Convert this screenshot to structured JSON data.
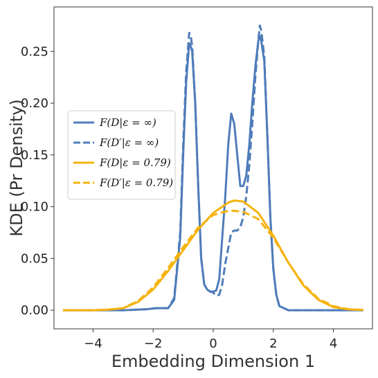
{
  "chart_data": {
    "type": "line",
    "title": "",
    "xlabel": "Embedding Dimension 1",
    "ylabel": "KDE (Pr Density)",
    "xlim": [
      -5.3,
      5.3
    ],
    "ylim": [
      -0.018,
      0.293
    ],
    "xticks": [
      -4,
      -2,
      0,
      2,
      4
    ],
    "xtick_labels": [
      "−4",
      "−2",
      "0",
      "2",
      "4"
    ],
    "yticks": [
      0.0,
      0.05,
      0.1,
      0.15,
      0.2,
      0.25
    ],
    "ytick_labels": [
      "0.00",
      "0.05",
      "0.10",
      "0.15",
      "0.20",
      "0.25"
    ],
    "grid": false,
    "legend_position": "center-left",
    "series": [
      {
        "name": "F(D|ε = ∞)",
        "color": "#4f7cba",
        "dash": "solid",
        "x": [
          -5,
          -3,
          -2.2,
          -1.9,
          -1.7,
          -1.5,
          -1.3,
          -1.1,
          -1.0,
          -0.9,
          -0.8,
          -0.75,
          -0.7,
          -0.6,
          -0.5,
          -0.4,
          -0.3,
          -0.2,
          -0.1,
          0.0,
          0.1,
          0.2,
          0.3,
          0.4,
          0.5,
          0.6,
          0.7,
          0.8,
          0.9,
          1.0,
          1.1,
          1.2,
          1.3,
          1.4,
          1.5,
          1.55,
          1.6,
          1.7,
          1.8,
          1.9,
          2.0,
          2.1,
          2.2,
          2.5,
          3,
          5
        ],
        "y": [
          0.0,
          0.0,
          0.001,
          0.002,
          0.002,
          0.002,
          0.01,
          0.07,
          0.15,
          0.22,
          0.258,
          0.255,
          0.25,
          0.2,
          0.12,
          0.05,
          0.025,
          0.02,
          0.018,
          0.018,
          0.019,
          0.03,
          0.07,
          0.11,
          0.16,
          0.19,
          0.18,
          0.15,
          0.12,
          0.12,
          0.13,
          0.16,
          0.2,
          0.235,
          0.26,
          0.265,
          0.26,
          0.24,
          0.17,
          0.09,
          0.04,
          0.015,
          0.004,
          0.0,
          0.0,
          0.0
        ]
      },
      {
        "name": "F(D′|ε = ∞)",
        "color": "#4f7cba",
        "dash": "dashed",
        "x": [
          -5,
          -3,
          -2.2,
          -1.9,
          -1.7,
          -1.5,
          -1.3,
          -1.1,
          -1.0,
          -0.9,
          -0.8,
          -0.75,
          -0.7,
          -0.6,
          -0.5,
          -0.4,
          -0.3,
          -0.2,
          -0.1,
          0.0,
          0.1,
          0.2,
          0.3,
          0.4,
          0.5,
          0.6,
          0.7,
          0.8,
          0.9,
          1.0,
          1.1,
          1.2,
          1.3,
          1.4,
          1.5,
          1.55,
          1.6,
          1.7,
          1.8,
          1.9,
          2.0,
          2.1,
          2.2,
          2.5,
          3,
          5
        ],
        "y": [
          0.0,
          0.0,
          0.001,
          0.002,
          0.002,
          0.002,
          0.012,
          0.075,
          0.16,
          0.23,
          0.268,
          0.265,
          0.255,
          0.2,
          0.12,
          0.05,
          0.025,
          0.02,
          0.018,
          0.017,
          0.014,
          0.015,
          0.025,
          0.045,
          0.06,
          0.075,
          0.077,
          0.077,
          0.08,
          0.09,
          0.11,
          0.14,
          0.18,
          0.225,
          0.26,
          0.275,
          0.27,
          0.245,
          0.17,
          0.09,
          0.04,
          0.015,
          0.004,
          0.0,
          0.0,
          0.0
        ]
      },
      {
        "name": "F(D|ε = 0.79)",
        "color": "#f5b30f",
        "dash": "solid",
        "x": [
          -5,
          -4.5,
          -4,
          -3.5,
          -3,
          -2.5,
          -2,
          -1.5,
          -1,
          -0.5,
          0,
          0.5,
          0.7,
          1,
          1.5,
          2,
          2.5,
          3,
          3.5,
          4,
          4.5,
          5
        ],
        "y": [
          0.0,
          0.0,
          0.0,
          0.0005,
          0.002,
          0.008,
          0.02,
          0.038,
          0.058,
          0.078,
          0.094,
          0.104,
          0.106,
          0.105,
          0.094,
          0.072,
          0.046,
          0.024,
          0.01,
          0.003,
          0.0008,
          0.0002
        ]
      },
      {
        "name": "F(D′|ε = 0.79)",
        "color": "#f5b30f",
        "dash": "dashed",
        "x": [
          -5,
          -4.5,
          -4,
          -3.5,
          -3,
          -2.5,
          -2,
          -1.5,
          -1,
          -0.5,
          0,
          0.5,
          0.7,
          1,
          1.5,
          2,
          2.5,
          3,
          3.5,
          4,
          4.5,
          5
        ],
        "y": [
          0.0,
          0.0,
          0.0,
          0.0005,
          0.002,
          0.009,
          0.022,
          0.041,
          0.061,
          0.08,
          0.092,
          0.096,
          0.096,
          0.095,
          0.088,
          0.07,
          0.046,
          0.025,
          0.011,
          0.004,
          0.001,
          0.0003
        ]
      }
    ]
  }
}
